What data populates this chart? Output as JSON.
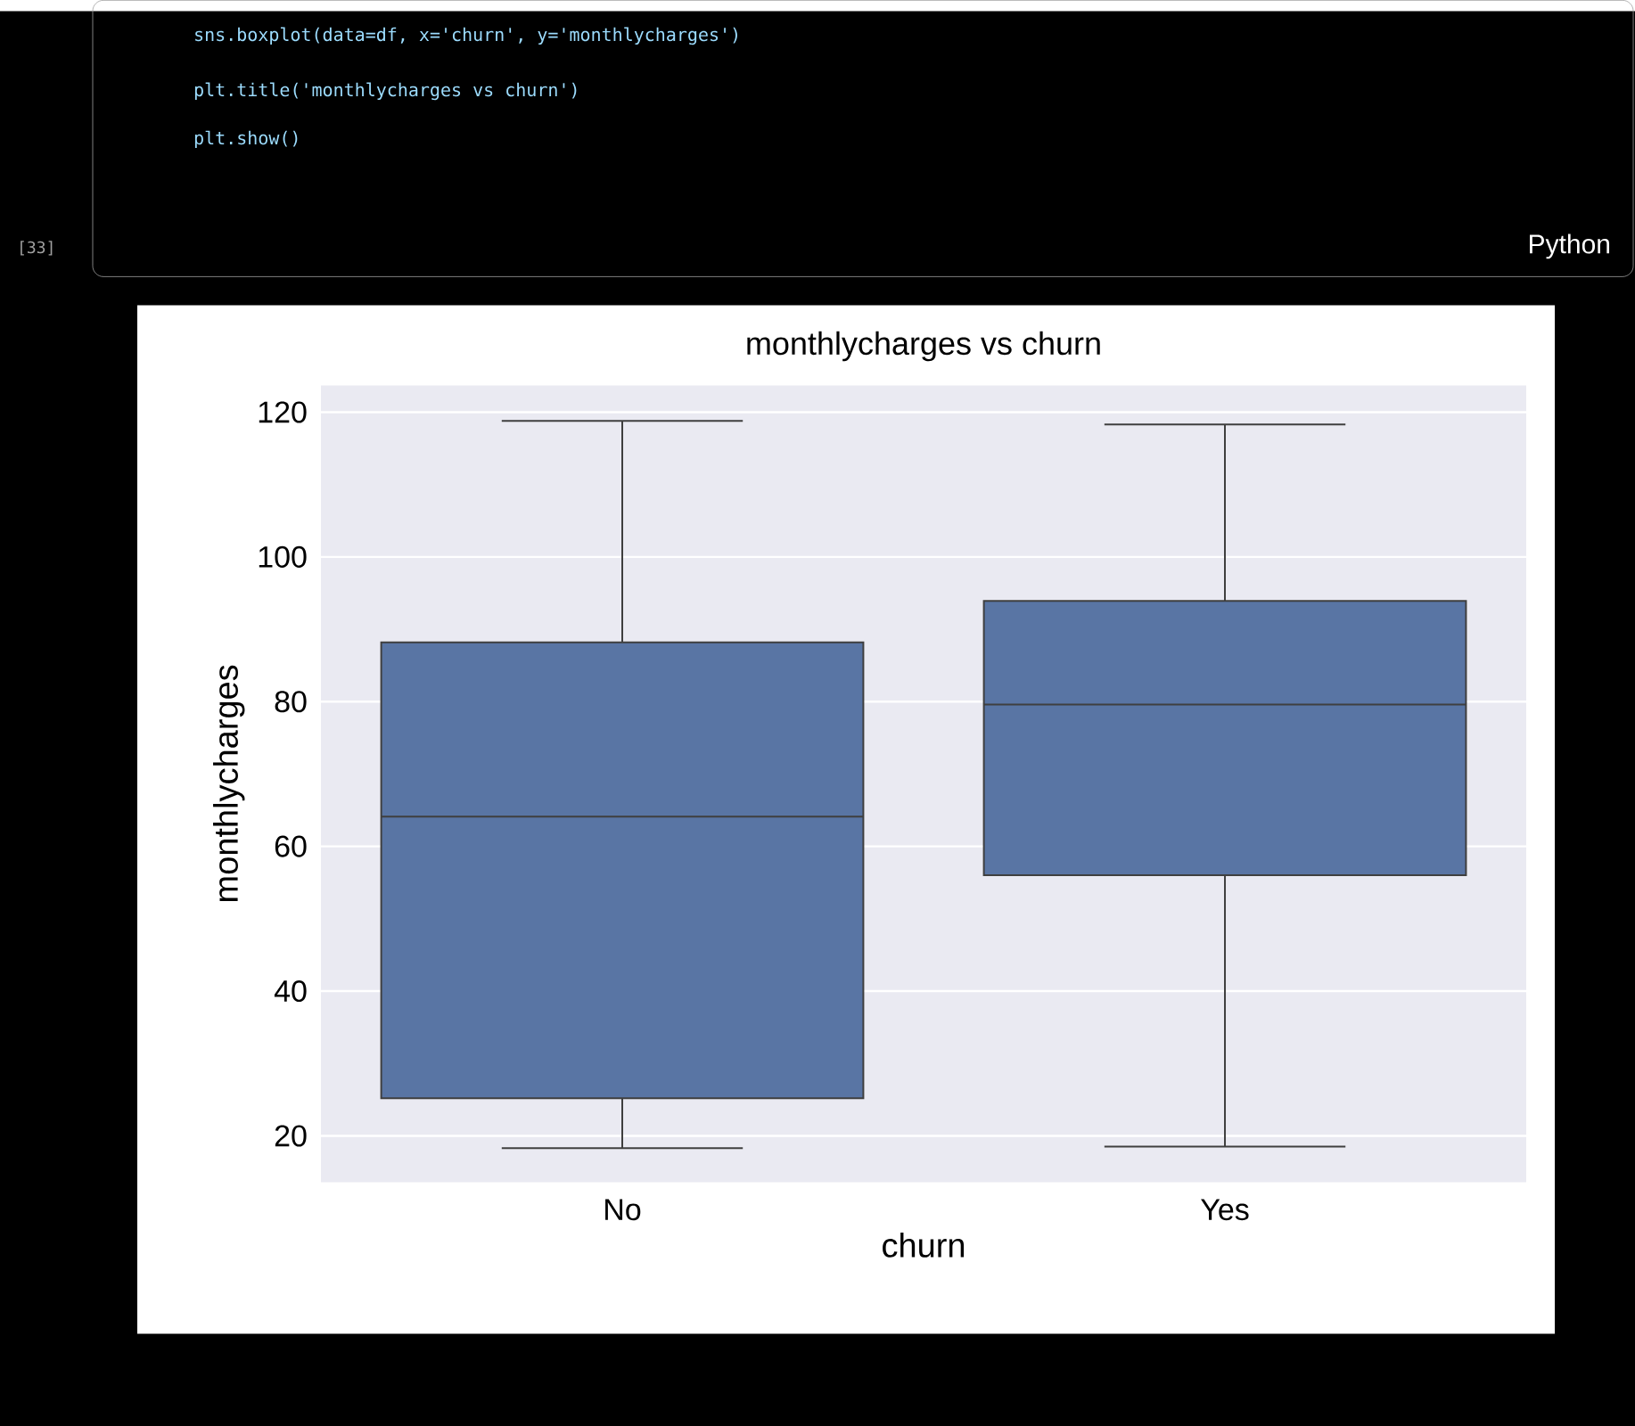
{
  "chart_data": {
    "type": "box",
    "title": "monthlycharges vs churn",
    "xlabel": "churn",
    "ylabel": "monthlycharges",
    "categories": [
      "No",
      "Yes"
    ],
    "boxes": [
      {
        "low": 18.3,
        "q1": 25.2,
        "median": 64.1,
        "q3": 88.2,
        "high": 118.8
      },
      {
        "low": 18.5,
        "q1": 56.0,
        "median": 79.6,
        "q3": 93.9,
        "high": 118.3
      }
    ],
    "color": "#5975a4",
    "ylim": [
      13.6,
      123.7
    ],
    "yticks": [
      20,
      40,
      60,
      80,
      100,
      120
    ],
    "grid": "y",
    "annotations": [
      "sns.boxplot(data=df, x='churn', y='monthlycharges')",
      "plt.title('monthlycharges vs churn')",
      "plt.show()",
      "[33]",
      "Python"
    ]
  }
}
